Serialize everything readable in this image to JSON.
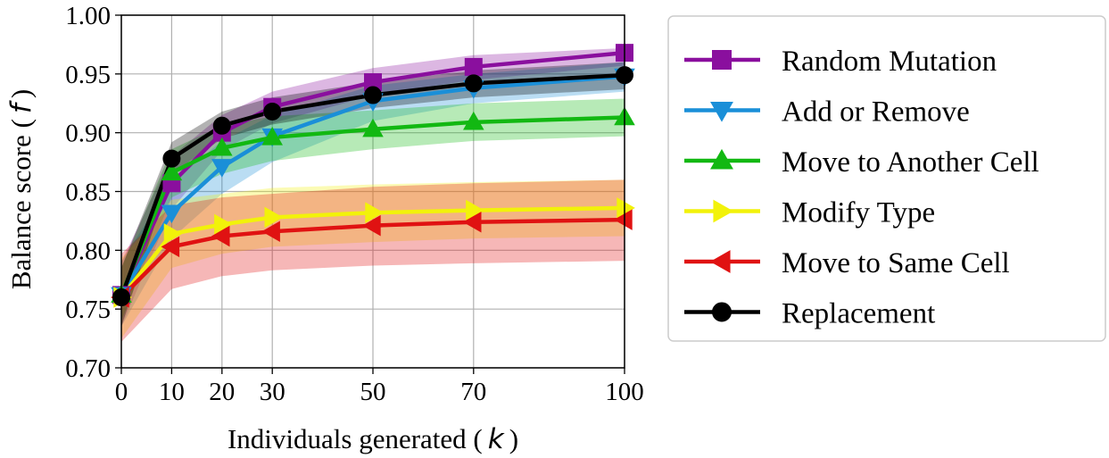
{
  "chart_data": {
    "type": "line",
    "x": [
      0,
      10,
      20,
      30,
      50,
      70,
      100
    ],
    "xlabel": {
      "prefix": "Individuals generated (",
      "symbol": "k",
      "suffix": ")"
    },
    "ylabel": {
      "prefix": "Balance score (",
      "symbol": "f",
      "suffix": ")"
    },
    "xlim": [
      0,
      100
    ],
    "ylim": [
      0.7,
      1.0
    ],
    "xticks": [
      "0",
      "10",
      "20",
      "30",
      "50",
      "70",
      "100"
    ],
    "yticks": [
      "0.70",
      "0.75",
      "0.80",
      "0.85",
      "0.90",
      "0.95",
      "1.00"
    ],
    "grid": true,
    "legend_position": "right-outside",
    "series": [
      {
        "name": "Random Mutation",
        "color": "#8a0f9e",
        "marker": "square",
        "values": [
          0.762,
          0.857,
          0.9,
          0.922,
          0.943,
          0.956,
          0.968
        ],
        "lower": [
          0.735,
          0.835,
          0.885,
          0.908,
          0.932,
          0.945,
          0.957
        ],
        "upper": [
          0.79,
          0.88,
          0.915,
          0.935,
          0.955,
          0.966,
          0.972
        ]
      },
      {
        "name": "Add or Remove",
        "color": "#1a8fd8",
        "marker": "triangle-down",
        "values": [
          0.762,
          0.832,
          0.871,
          0.897,
          0.927,
          0.938,
          0.948
        ],
        "lower": [
          0.735,
          0.81,
          0.848,
          0.875,
          0.91,
          0.925,
          0.935
        ],
        "upper": [
          0.79,
          0.858,
          0.893,
          0.915,
          0.94,
          0.95,
          0.96
        ]
      },
      {
        "name": "Move to Another Cell",
        "color": "#12b812",
        "marker": "triangle-up",
        "values": [
          0.762,
          0.866,
          0.887,
          0.896,
          0.903,
          0.909,
          0.913
        ],
        "lower": [
          0.74,
          0.845,
          0.865,
          0.876,
          0.886,
          0.893,
          0.897
        ],
        "upper": [
          0.785,
          0.886,
          0.906,
          0.914,
          0.919,
          0.925,
          0.929
        ]
      },
      {
        "name": "Modify Type",
        "color": "#f2f20a",
        "marker": "triangle-right",
        "values": [
          0.76,
          0.814,
          0.822,
          0.828,
          0.832,
          0.834,
          0.836
        ],
        "lower": [
          0.725,
          0.785,
          0.797,
          0.803,
          0.807,
          0.81,
          0.812
        ],
        "upper": [
          0.793,
          0.843,
          0.848,
          0.853,
          0.856,
          0.858,
          0.86
        ]
      },
      {
        "name": "Move to Same Cell",
        "color": "#e01212",
        "marker": "triangle-left",
        "values": [
          0.76,
          0.803,
          0.812,
          0.816,
          0.821,
          0.824,
          0.826
        ],
        "lower": [
          0.722,
          0.767,
          0.778,
          0.783,
          0.787,
          0.789,
          0.791
        ],
        "upper": [
          0.797,
          0.838,
          0.845,
          0.848,
          0.854,
          0.857,
          0.86
        ]
      },
      {
        "name": "Replacement",
        "color": "#000000",
        "marker": "circle",
        "values": [
          0.76,
          0.878,
          0.906,
          0.918,
          0.932,
          0.942,
          0.949
        ],
        "lower": [
          0.735,
          0.865,
          0.895,
          0.907,
          0.921,
          0.93,
          0.937
        ],
        "upper": [
          0.785,
          0.892,
          0.918,
          0.93,
          0.943,
          0.953,
          0.96
        ]
      }
    ]
  }
}
